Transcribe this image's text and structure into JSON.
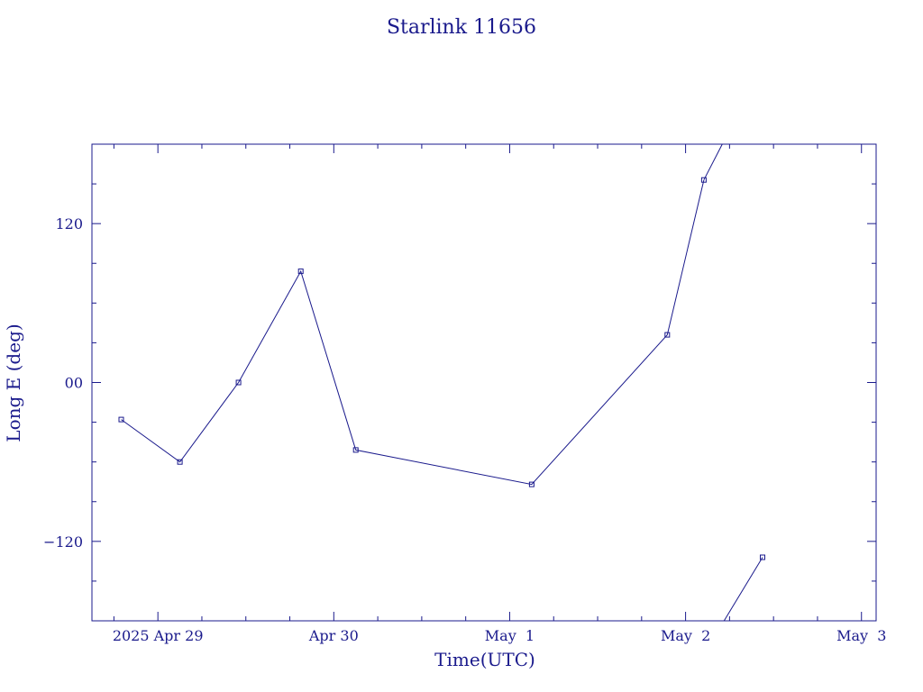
{
  "chart_data": {
    "type": "line",
    "title": "Starlink 11656",
    "xlabel": "Time(UTC)",
    "ylabel": "Long E (deg)",
    "x_tick_labels": [
      "2025 Apr 29",
      "Apr 30",
      "May  1",
      "May  2",
      "May  3"
    ],
    "x_tick_dates": [
      "2025-04-29",
      "2025-04-30",
      "2025-05-01",
      "2025-05-02",
      "2025-05-03"
    ],
    "y_tick_labels": [
      "120",
      "00",
      "−120"
    ],
    "y_tick_values": [
      120,
      0,
      -120
    ],
    "xlim": [
      "2025-04-28T15:00",
      "2025-05-03T02:00"
    ],
    "ylim": [
      -180,
      180
    ],
    "grid": false,
    "color": "#1a1a8c",
    "series": [
      {
        "x": [
          "2025-04-28T19:00",
          "2025-04-29T03:00",
          "2025-04-29T11:00",
          "2025-04-29T19:30",
          "2025-04-30T03:00",
          "2025-05-01T03:00",
          "2025-05-01T21:30",
          "2025-05-02T02:30"
        ],
        "y": [
          -28,
          -60,
          0,
          84,
          -51,
          -77,
          36,
          153
        ]
      },
      {
        "x": [
          "2025-05-02T10:30"
        ],
        "y": [
          -132
        ]
      }
    ],
    "wrap_segments": [
      {
        "x": [
          "2025-05-02T02:30",
          "2025-05-02T05:00"
        ],
        "y": [
          153,
          180
        ]
      },
      {
        "x": [
          "2025-05-02T05:15",
          "2025-05-02T10:30"
        ],
        "y": [
          -180,
          -132
        ]
      }
    ]
  }
}
